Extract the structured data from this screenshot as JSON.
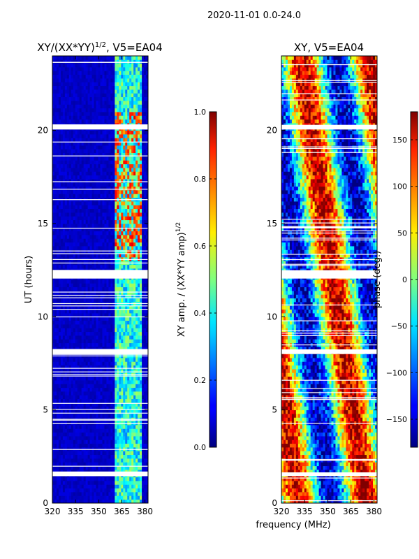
{
  "suptitle": "2020-11-01 0.0-24.0",
  "chart_data": [
    {
      "type": "heatmap",
      "title": "XY/(XX*YY)^1/2, V5=EA04",
      "title_main": "XY/(XX*YY)",
      "title_sup": "1/2",
      "title_suffix": ", V5=EA04",
      "xlabel": "",
      "ylabel": "UT (hours)",
      "xlim": [
        320,
        382
      ],
      "ylim": [
        0,
        24
      ],
      "xticks": [
        320,
        335,
        350,
        365,
        380
      ],
      "yticks": [
        0,
        5,
        10,
        15,
        20
      ],
      "colorbar": {
        "label": "XY amp. / (XX*YY amp)^1/2",
        "label_main": "XY amp. / (XX*YY amp)",
        "label_sup": "1/2",
        "range": [
          0.0,
          1.0
        ],
        "ticks": [
          "0.0",
          "0.2",
          "0.4",
          "0.6",
          "0.8",
          "1.0"
        ],
        "colormap": "jet"
      },
      "flagged_ut_bands": [
        [
          1.45,
          1.65
        ],
        [
          8.0,
          8.25
        ],
        [
          12.05,
          12.5
        ],
        [
          20.05,
          20.3
        ]
      ],
      "signal_band_mhz": [
        360,
        378
      ]
    },
    {
      "type": "heatmap",
      "title": "XY, V5=EA04",
      "xlabel": "frequency (MHz)",
      "ylabel": "",
      "xlim": [
        320,
        382
      ],
      "ylim": [
        0,
        24
      ],
      "xticks": [
        320,
        335,
        350,
        365,
        380
      ],
      "yticks": [
        0,
        5,
        10,
        15,
        20
      ],
      "colorbar": {
        "label": "phase (deg.)",
        "range": [
          -180,
          180
        ],
        "ticks": [
          "−150",
          "−100",
          "−50",
          "0",
          "50",
          "100",
          "150"
        ],
        "colormap": "jet"
      },
      "flagged_ut_bands": [
        [
          1.45,
          1.65
        ],
        [
          8.0,
          8.25
        ],
        [
          12.05,
          12.5
        ],
        [
          20.05,
          20.3
        ]
      ]
    }
  ]
}
